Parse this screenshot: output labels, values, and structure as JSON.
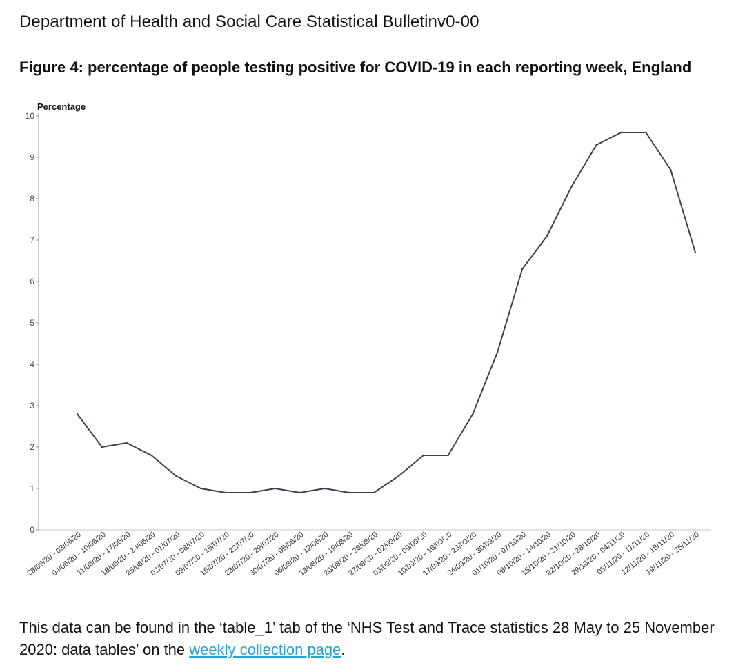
{
  "document": {
    "header": "Department of Health and Social Care Statistical Bulletinv0-00"
  },
  "figure": {
    "title": "Figure 4: percentage of people testing positive for COVID-19 in each reporting week, England"
  },
  "footer": {
    "text_before": "This data can be found in the ‘table_1’ tab of the ‘NHS Test and Trace statistics 28 May to 25 November 2020: data tables’ on the ",
    "link_text": "weekly collection page",
    "text_after": "."
  },
  "chart_data": {
    "type": "line",
    "title": "Figure 4: percentage of people testing positive for COVID-19 in each reporting week, England",
    "xlabel": "",
    "ylabel": "Percentage",
    "ylim": [
      0,
      10
    ],
    "yticks": [
      0,
      1,
      2,
      3,
      4,
      5,
      6,
      7,
      8,
      9,
      10
    ],
    "grid": false,
    "line_color": "#3a4250",
    "categories": [
      "28/05/20 - 03/06/20",
      "04/06/20 - 10/06/20",
      "11/06/20 - 17/06/20",
      "18/06/20 - 24/06/20",
      "25/06/20 - 01/07/20",
      "02/07/20 - 08/07/20",
      "09/07/20 - 15/07/20",
      "16/07/20 - 22/07/20",
      "23/07/20 - 29/07/20",
      "30/07/20 - 05/08/20",
      "06/08/20 - 12/08/20",
      "13/08/20 - 19/08/20",
      "20/08/20 - 26/08/20",
      "27/08/20 - 02/09/20",
      "03/09/20 - 09/09/20",
      "10/09/20 - 16/09/20",
      "17/09/20 - 23/09/20",
      "24/09/20 - 30/09/20",
      "01/10/20 - 07/10/20",
      "08/10/20 - 14/10/20",
      "15/10/20 - 21/10/20",
      "22/10/20 - 28/10/20",
      "29/10/20 - 04/11/20",
      "05/11/20 - 11/11/20",
      "12/11/20 - 18/11/20",
      "19/11/20 - 25/11/20"
    ],
    "values": [
      2.8,
      2.0,
      2.1,
      1.8,
      1.3,
      1.0,
      0.9,
      0.9,
      1.0,
      0.9,
      1.0,
      0.9,
      0.9,
      1.3,
      1.8,
      1.8,
      2.8,
      4.3,
      6.3,
      7.1,
      8.3,
      9.3,
      9.6,
      9.6,
      8.7,
      6.7
    ]
  }
}
